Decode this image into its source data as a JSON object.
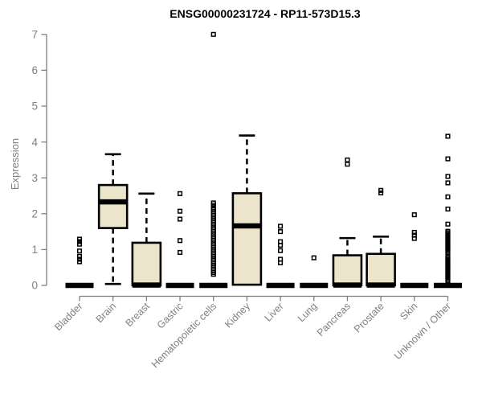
{
  "colors": {
    "background": "#ffffff",
    "box_fill": "#ece5cb",
    "box_border": "#000000",
    "median": "#000000",
    "whisker": "#000000",
    "outlier": "#000000",
    "axis": "#7f7f7f",
    "tick_text": "#7f7f7f",
    "title_text": "#000000"
  },
  "chart_data": {
    "type": "boxplot",
    "title": "ENSG00000231724 - RP11-573D15.3",
    "xlabel": "",
    "ylabel": "Expression",
    "ylim": [
      0,
      7
    ],
    "yticks": [
      0,
      1,
      2,
      3,
      4,
      5,
      6,
      7
    ],
    "grid": false,
    "legend": false,
    "categories": [
      "Bladder",
      "Brain",
      "Breast",
      "Gastric",
      "Hematopoietic cells",
      "Kidney",
      "Liver",
      "Lung",
      "Pancreas",
      "Prostate",
      "Skin",
      "Unknown / Other"
    ],
    "series": [
      {
        "name": "Bladder",
        "q1": 0,
        "median": 0,
        "q3": 0,
        "whisker_low": 0,
        "whisker_high": 0,
        "outliers": [
          1.29,
          1.22,
          1.15,
          0.96,
          0.81,
          0.73,
          0.66
        ]
      },
      {
        "name": "Brain",
        "q1": 1.6,
        "median": 2.33,
        "q3": 2.8,
        "whisker_low": 0.04,
        "whisker_high": 3.66,
        "outliers": []
      },
      {
        "name": "Breast",
        "q1": 0,
        "median": 0.01,
        "q3": 1.19,
        "whisker_low": 0,
        "whisker_high": 2.56,
        "outliers": []
      },
      {
        "name": "Gastric",
        "q1": 0,
        "median": 0,
        "q3": 0,
        "whisker_low": 0,
        "whisker_high": 0,
        "outliers": [
          2.56,
          2.07,
          1.85,
          1.25,
          0.92
        ]
      },
      {
        "name": "Hematopoietic cells",
        "q1": 0,
        "median": 0,
        "q3": 0,
        "whisker_low": 0,
        "whisker_high": 0,
        "outliers": [
          7.0,
          2.3,
          2.24,
          2.16,
          2.11,
          2.06,
          2.01,
          1.96,
          1.91,
          1.86,
          1.81,
          1.76,
          1.71,
          1.66,
          1.61,
          1.56,
          1.51,
          1.46,
          1.41,
          1.36,
          1.31,
          1.26,
          1.21,
          1.16,
          1.11,
          1.06,
          1.01,
          0.96,
          0.91,
          0.86,
          0.81,
          0.76,
          0.71,
          0.66,
          0.61,
          0.56,
          0.51,
          0.46,
          0.41,
          0.36,
          0.31
        ]
      },
      {
        "name": "Kidney",
        "q1": 0.02,
        "median": 1.66,
        "q3": 2.57,
        "whisker_low": 0.02,
        "whisker_high": 4.18,
        "outliers": []
      },
      {
        "name": "Liver",
        "q1": 0,
        "median": 0,
        "q3": 0,
        "whisker_low": 0,
        "whisker_high": 0,
        "outliers": [
          1.65,
          1.5,
          1.22,
          1.12,
          0.97,
          0.73,
          0.63
        ]
      },
      {
        "name": "Lung",
        "q1": 0,
        "median": 0,
        "q3": 0,
        "whisker_low": 0,
        "whisker_high": 0,
        "outliers": [
          0.77
        ]
      },
      {
        "name": "Pancreas",
        "q1": 0,
        "median": 0.01,
        "q3": 0.84,
        "whisker_low": 0,
        "whisker_high": 1.32,
        "outliers": [
          3.5,
          3.38
        ]
      },
      {
        "name": "Prostate",
        "q1": 0,
        "median": 0.01,
        "q3": 0.88,
        "whisker_low": 0,
        "whisker_high": 1.36,
        "outliers": [
          2.65,
          2.58
        ]
      },
      {
        "name": "Skin",
        "q1": 0,
        "median": 0,
        "q3": 0,
        "whisker_low": 0,
        "whisker_high": 0,
        "outliers": [
          1.97,
          1.48,
          1.4,
          1.31
        ]
      },
      {
        "name": "Unknown / Other",
        "q1": 0,
        "median": 0,
        "q3": 0,
        "whisker_low": 0,
        "whisker_high": 0,
        "outliers": [
          4.16,
          3.53,
          3.04,
          2.86,
          2.47,
          2.13,
          1.71,
          1.51,
          1.47,
          1.43,
          1.39,
          1.35,
          1.31,
          1.27,
          1.23,
          1.19,
          1.15,
          1.11,
          1.07,
          1.03,
          0.99,
          0.95,
          0.91,
          0.81,
          0.77,
          0.73,
          0.69,
          0.65,
          0.61,
          0.57,
          0.53,
          0.49,
          0.45,
          0.41,
          0.37,
          0.33,
          0.29,
          0.25,
          0.21,
          0.17,
          0.13
        ]
      }
    ]
  }
}
